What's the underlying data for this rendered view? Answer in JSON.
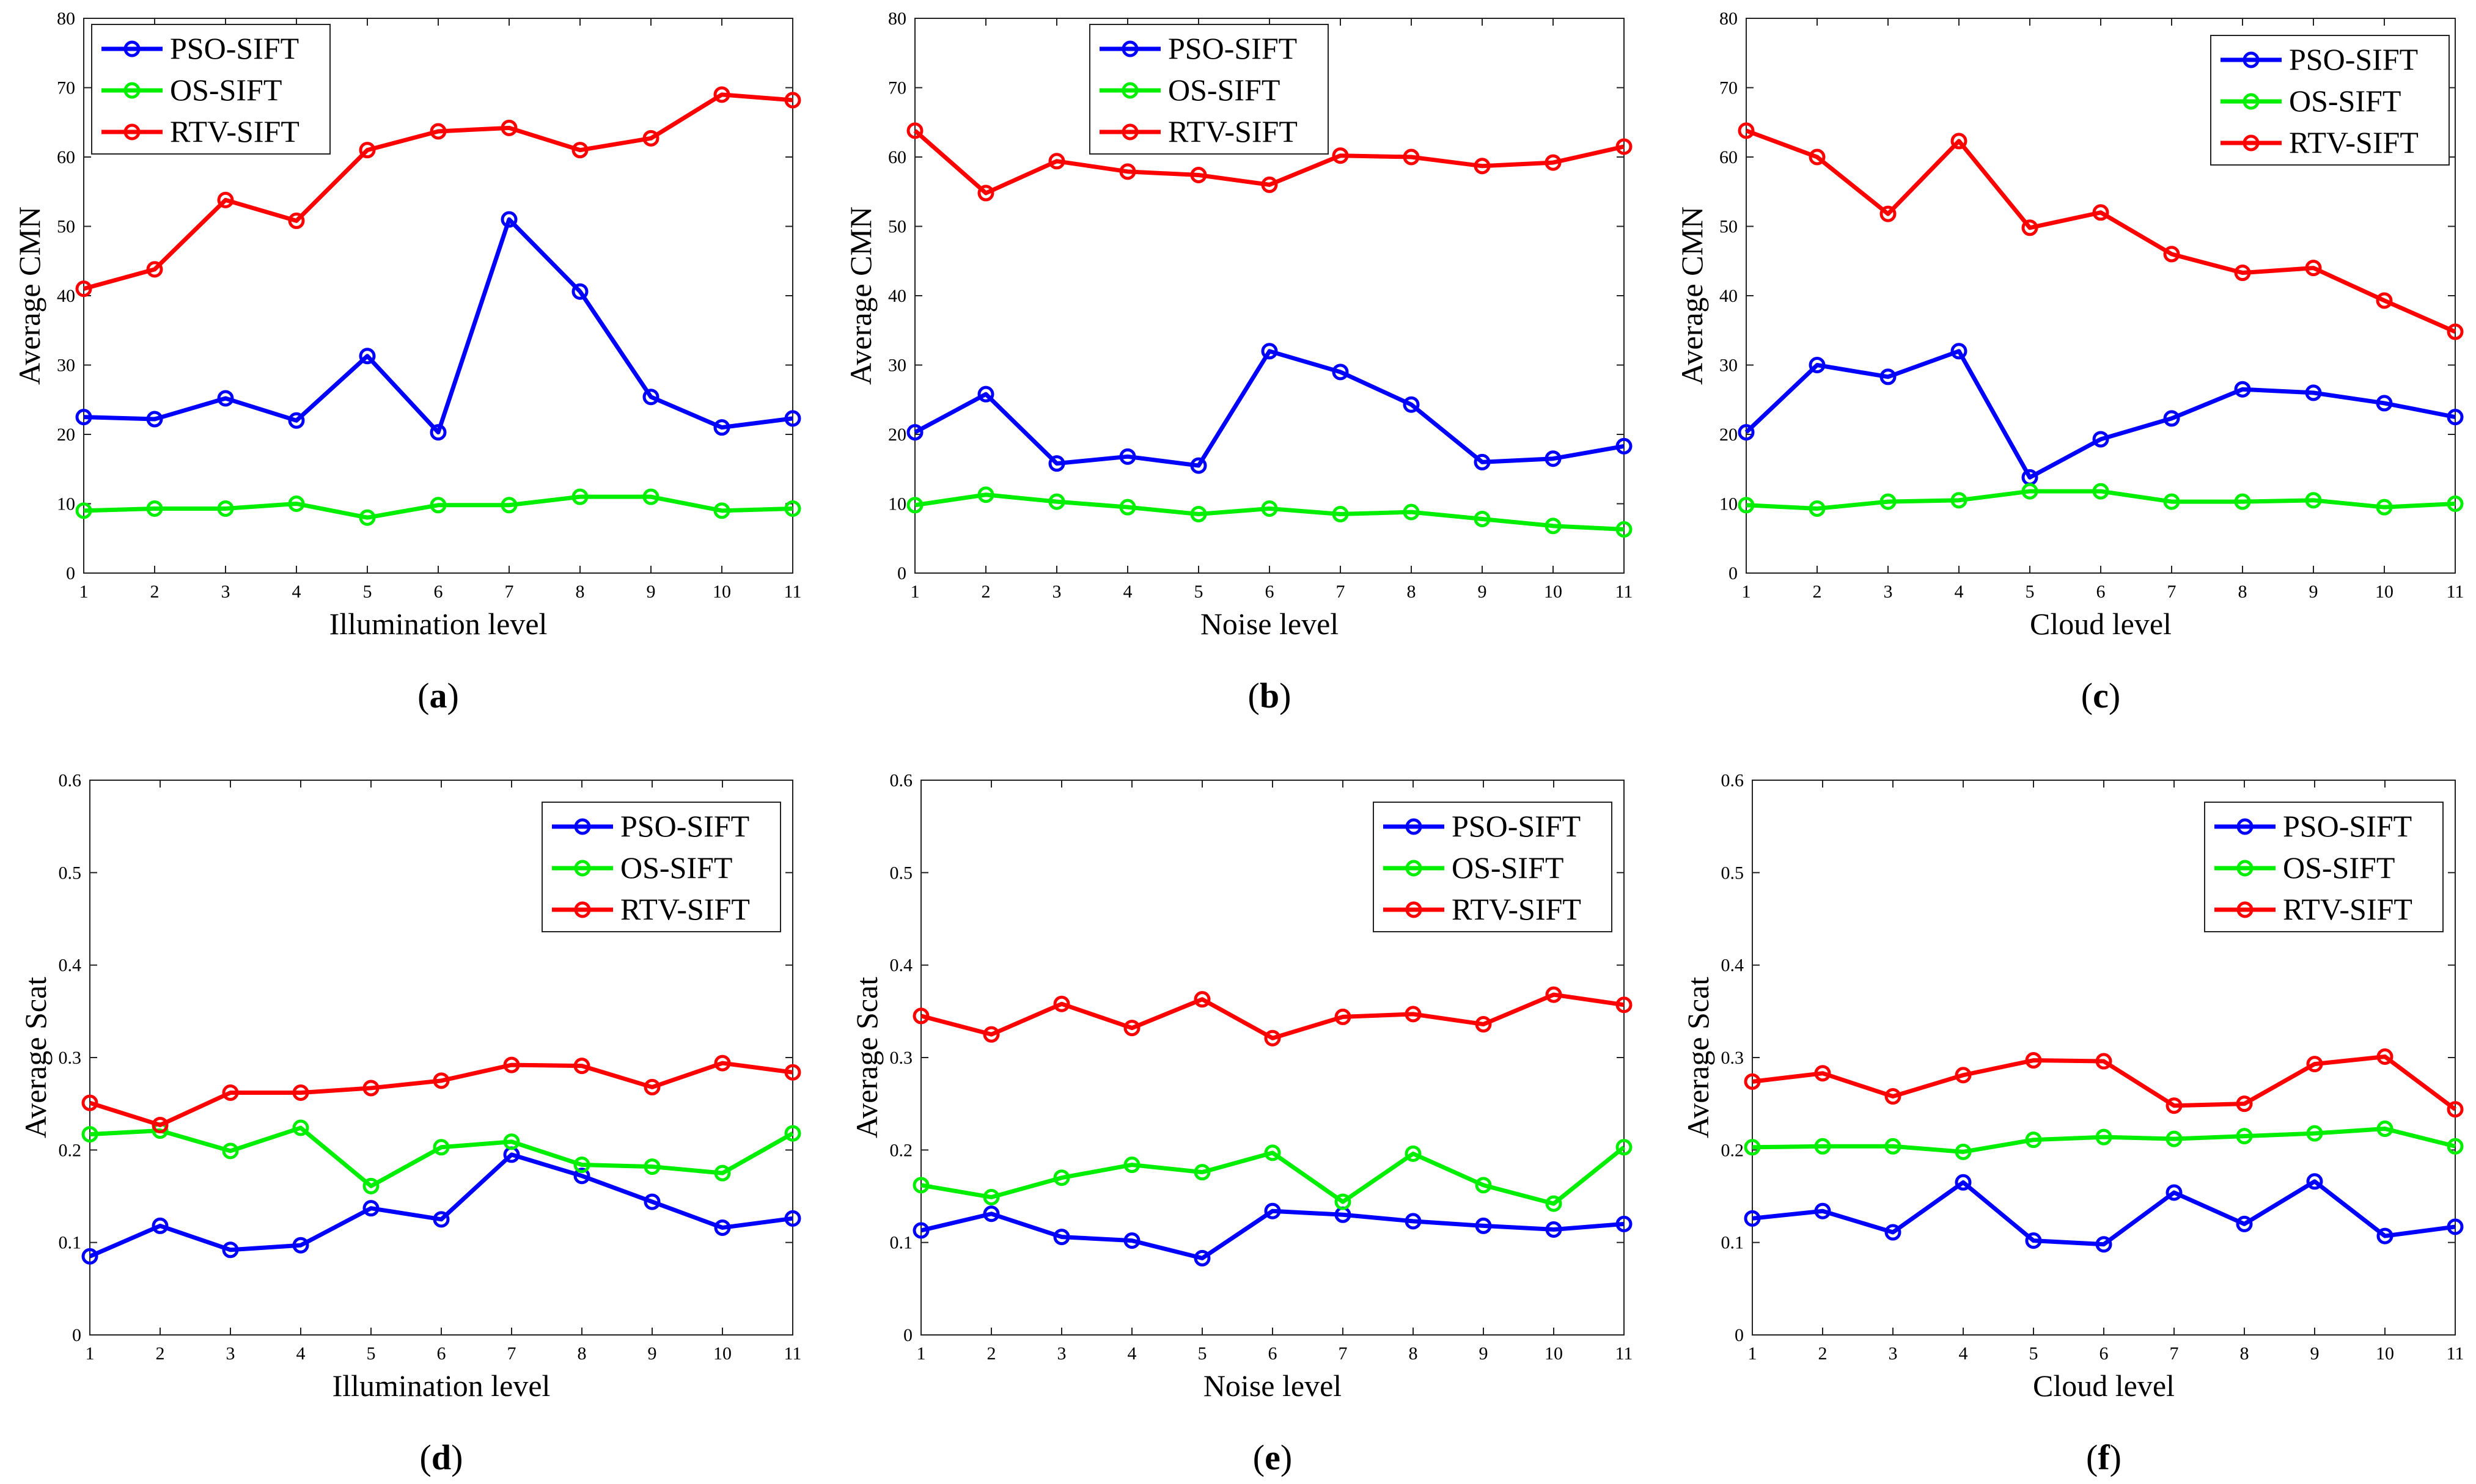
{
  "colors": {
    "pso": "#0000ff",
    "os": "#00ee00",
    "rtv": "#ff0000"
  },
  "chart_data": [
    {
      "type": "line",
      "caption_letter": "a",
      "xlabel": "Illumination level",
      "ylabel": "Average CMN",
      "legend_position": "top-left",
      "x": [
        1,
        2,
        3,
        4,
        5,
        6,
        7,
        8,
        9,
        10,
        11
      ],
      "xticks": [
        "1",
        "2",
        "3",
        "4",
        "5",
        "6",
        "7",
        "8",
        "9",
        "10",
        "11"
      ],
      "ylim": [
        0,
        80
      ],
      "yticks": [
        "0",
        "10",
        "20",
        "30",
        "40",
        "50",
        "60",
        "70",
        "80"
      ],
      "series": [
        {
          "name": "PSO-SIFT",
          "color": "#0000ff",
          "values": [
            22.5,
            22.2,
            25.2,
            22,
            31.3,
            20.3,
            51,
            40.6,
            25.4,
            21,
            22.3
          ]
        },
        {
          "name": "OS-SIFT",
          "color": "#00ee00",
          "values": [
            9,
            9.3,
            9.3,
            10,
            8,
            9.8,
            9.8,
            11,
            11,
            9,
            9.3
          ]
        },
        {
          "name": "RTV-SIFT",
          "color": "#ff0000",
          "values": [
            41,
            43.8,
            53.8,
            50.8,
            61,
            63.7,
            64.2,
            61,
            62.7,
            69,
            68.2
          ]
        }
      ]
    },
    {
      "type": "line",
      "caption_letter": "b",
      "xlabel": "Noise level",
      "ylabel": "Average CMN",
      "legend_position": "top-center",
      "x": [
        1,
        2,
        3,
        4,
        5,
        6,
        7,
        8,
        9,
        10,
        11
      ],
      "xticks": [
        "1",
        "2",
        "3",
        "4",
        "5",
        "6",
        "7",
        "8",
        "9",
        "10",
        "11"
      ],
      "ylim": [
        0,
        80
      ],
      "yticks": [
        "0",
        "10",
        "20",
        "30",
        "40",
        "50",
        "60",
        "70",
        "80"
      ],
      "series": [
        {
          "name": "PSO-SIFT",
          "color": "#0000ff",
          "values": [
            20.3,
            25.8,
            15.8,
            16.8,
            15.5,
            32,
            29,
            24.3,
            16,
            16.5,
            18.3
          ]
        },
        {
          "name": "OS-SIFT",
          "color": "#00ee00",
          "values": [
            9.8,
            11.3,
            10.3,
            9.5,
            8.5,
            9.3,
            8.5,
            8.8,
            7.8,
            6.8,
            6.3
          ]
        },
        {
          "name": "RTV-SIFT",
          "color": "#ff0000",
          "values": [
            63.8,
            54.8,
            59.4,
            57.9,
            57.4,
            56,
            60.2,
            60,
            58.7,
            59.2,
            61.5
          ]
        }
      ]
    },
    {
      "type": "line",
      "caption_letter": "c",
      "xlabel": "Cloud level",
      "ylabel": "Average CMN",
      "legend_position": "top-right",
      "x": [
        1,
        2,
        3,
        4,
        5,
        6,
        7,
        8,
        9,
        10,
        11
      ],
      "xticks": [
        "1",
        "2",
        "3",
        "4",
        "5",
        "6",
        "7",
        "8",
        "9",
        "10",
        "11"
      ],
      "ylim": [
        0,
        80
      ],
      "yticks": [
        "0",
        "10",
        "20",
        "30",
        "40",
        "50",
        "60",
        "70",
        "80"
      ],
      "series": [
        {
          "name": "PSO-SIFT",
          "color": "#0000ff",
          "values": [
            20.3,
            30,
            28.3,
            32,
            13.8,
            19.3,
            22.3,
            26.5,
            26,
            24.5,
            22.5
          ]
        },
        {
          "name": "OS-SIFT",
          "color": "#00ee00",
          "values": [
            9.8,
            9.3,
            10.3,
            10.5,
            11.8,
            11.8,
            10.3,
            10.3,
            10.5,
            9.5,
            10
          ]
        },
        {
          "name": "RTV-SIFT",
          "color": "#ff0000",
          "values": [
            63.8,
            60,
            51.8,
            62.3,
            49.8,
            52,
            46,
            43.3,
            44,
            39.3,
            34.8
          ]
        }
      ]
    },
    {
      "type": "line",
      "caption_letter": "d",
      "xlabel": "Illumination level",
      "ylabel": "Average Scat",
      "legend_position": "top-right",
      "x": [
        1,
        2,
        3,
        4,
        5,
        6,
        7,
        8,
        9,
        10,
        11
      ],
      "xticks": [
        "1",
        "2",
        "3",
        "4",
        "5",
        "6",
        "7",
        "8",
        "9",
        "10",
        "11"
      ],
      "ylim": [
        0,
        0.6
      ],
      "yticks": [
        "0",
        "0.1",
        "0.2",
        "0.3",
        "0.4",
        "0.5",
        "0.6"
      ],
      "series": [
        {
          "name": "PSO-SIFT",
          "color": "#0000ff",
          "values": [
            0.085,
            0.118,
            0.092,
            0.097,
            0.137,
            0.125,
            0.195,
            0.172,
            0.144,
            0.116,
            0.126
          ]
        },
        {
          "name": "OS-SIFT",
          "color": "#00ee00",
          "values": [
            0.217,
            0.221,
            0.199,
            0.224,
            0.161,
            0.203,
            0.209,
            0.184,
            0.182,
            0.175,
            0.218
          ]
        },
        {
          "name": "RTV-SIFT",
          "color": "#ff0000",
          "values": [
            0.251,
            0.227,
            0.262,
            0.262,
            0.267,
            0.275,
            0.292,
            0.291,
            0.268,
            0.294,
            0.284
          ]
        }
      ]
    },
    {
      "type": "line",
      "caption_letter": "e",
      "xlabel": "Noise level",
      "ylabel": "Average Scat",
      "legend_position": "top-right",
      "x": [
        1,
        2,
        3,
        4,
        5,
        6,
        7,
        8,
        9,
        10,
        11
      ],
      "xticks": [
        "1",
        "2",
        "3",
        "4",
        "5",
        "6",
        "7",
        "8",
        "9",
        "10",
        "11"
      ],
      "ylim": [
        0,
        0.6
      ],
      "yticks": [
        "0",
        "0.1",
        "0.2",
        "0.3",
        "0.4",
        "0.5",
        "0.6"
      ],
      "series": [
        {
          "name": "PSO-SIFT",
          "color": "#0000ff",
          "values": [
            0.113,
            0.131,
            0.106,
            0.102,
            0.083,
            0.134,
            0.13,
            0.123,
            0.118,
            0.114,
            0.12
          ]
        },
        {
          "name": "OS-SIFT",
          "color": "#00ee00",
          "values": [
            0.162,
            0.149,
            0.17,
            0.184,
            0.176,
            0.197,
            0.144,
            0.196,
            0.162,
            0.142,
            0.203
          ]
        },
        {
          "name": "RTV-SIFT",
          "color": "#ff0000",
          "values": [
            0.345,
            0.325,
            0.358,
            0.332,
            0.363,
            0.321,
            0.344,
            0.347,
            0.336,
            0.368,
            0.357
          ]
        }
      ]
    },
    {
      "type": "line",
      "caption_letter": "f",
      "xlabel": "Cloud level",
      "ylabel": "Average Scat",
      "legend_position": "top-right",
      "x": [
        1,
        2,
        3,
        4,
        5,
        6,
        7,
        8,
        9,
        10,
        11
      ],
      "xticks": [
        "1",
        "2",
        "3",
        "4",
        "5",
        "6",
        "7",
        "8",
        "9",
        "10",
        "11"
      ],
      "ylim": [
        0,
        0.6
      ],
      "yticks": [
        "0",
        "0.1",
        "0.2",
        "0.3",
        "0.4",
        "0.5",
        "0.6"
      ],
      "series": [
        {
          "name": "PSO-SIFT",
          "color": "#0000ff",
          "values": [
            0.126,
            0.134,
            0.111,
            0.165,
            0.102,
            0.098,
            0.154,
            0.12,
            0.166,
            0.107,
            0.117
          ]
        },
        {
          "name": "OS-SIFT",
          "color": "#00ee00",
          "values": [
            0.203,
            0.204,
            0.204,
            0.198,
            0.211,
            0.214,
            0.212,
            0.215,
            0.218,
            0.223,
            0.204
          ]
        },
        {
          "name": "RTV-SIFT",
          "color": "#ff0000",
          "values": [
            0.274,
            0.283,
            0.258,
            0.281,
            0.297,
            0.296,
            0.248,
            0.25,
            0.293,
            0.301,
            0.244
          ]
        }
      ]
    }
  ]
}
